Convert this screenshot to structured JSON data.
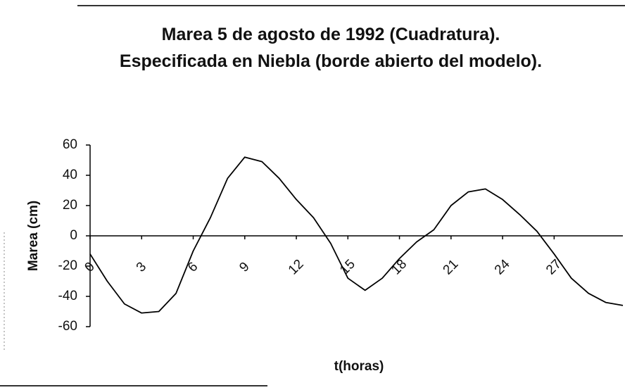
{
  "chart_data": {
    "type": "line",
    "title": "Marea 5 de agosto de 1992 (Cuadratura). Especificada en Niebla (borde abierto del modelo).",
    "x_label": "t(horas)",
    "y_label": "Marea (cm)",
    "x": [
      0,
      1,
      2,
      3,
      4,
      5,
      6,
      7,
      8,
      9,
      10,
      11,
      12,
      13,
      14,
      15,
      16,
      17,
      18,
      19,
      20,
      21,
      22,
      23,
      24,
      25,
      26,
      27,
      28,
      29,
      30,
      31
    ],
    "series": [
      {
        "name": "Marea",
        "color": "#000000",
        "values": [
          -12,
          -30,
          -45,
          -51,
          -50,
          -38,
          -10,
          12,
          38,
          52,
          49,
          38,
          24,
          12,
          -5,
          -28,
          -36,
          -28,
          -15,
          -4,
          4,
          20,
          29,
          31,
          24,
          14,
          3,
          -12,
          -28,
          -38,
          -44,
          -46
        ]
      }
    ],
    "xlim": [
      0,
      31
    ],
    "xticks": [
      0,
      3,
      6,
      9,
      12,
      15,
      18,
      21,
      24,
      27
    ],
    "ylim": [
      -60,
      60
    ],
    "yticks": [
      -60,
      -40,
      -20,
      0,
      20,
      40,
      60
    ]
  }
}
